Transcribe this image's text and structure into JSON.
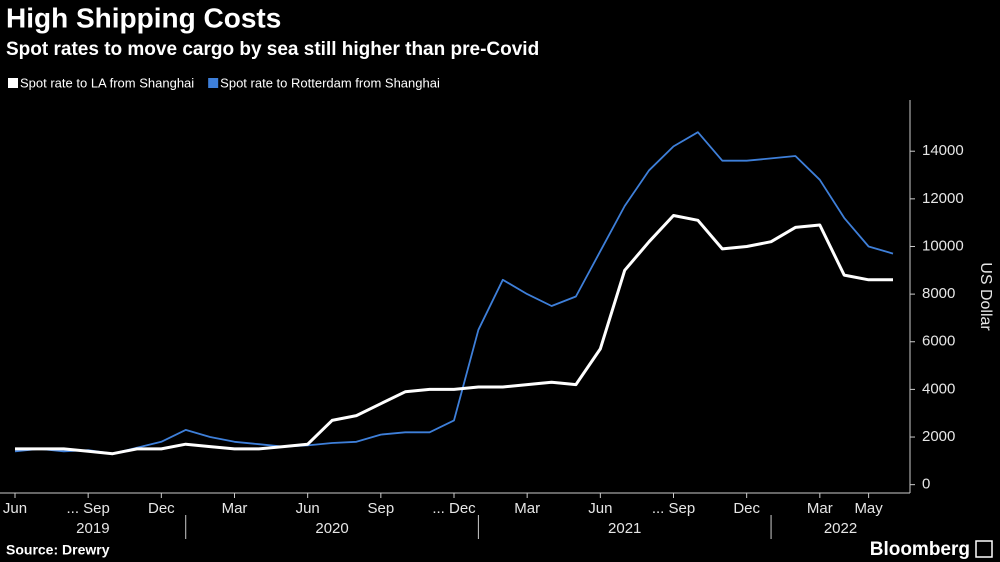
{
  "chart_data": {
    "type": "line",
    "title": "High Shipping Costs",
    "subtitle": "Spot rates to move cargo by sea still higher than pre-Covid",
    "y_axis_label": "US Dollar",
    "source": "Source: Drewry",
    "brand": "Bloomberg",
    "x": [
      "2019-06",
      "2019-07",
      "2019-08",
      "2019-09",
      "2019-10",
      "2019-11",
      "2019-12",
      "2020-01",
      "2020-02",
      "2020-03",
      "2020-04",
      "2020-05",
      "2020-06",
      "2020-07",
      "2020-08",
      "2020-09",
      "2020-10",
      "2020-11",
      "2020-12",
      "2021-01",
      "2021-02",
      "2021-03",
      "2021-04",
      "2021-05",
      "2021-06",
      "2021-07",
      "2021-08",
      "2021-09",
      "2021-10",
      "2021-11",
      "2021-12",
      "2022-01",
      "2022-02",
      "2022-03",
      "2022-04",
      "2022-05",
      "2022-06"
    ],
    "series": [
      {
        "name": "Spot rate to LA from Shanghai",
        "color": "#ffffff",
        "values": [
          1500,
          1500,
          1500,
          1400,
          1300,
          1500,
          1500,
          1700,
          1600,
          1500,
          1500,
          1600,
          1700,
          2700,
          2900,
          3400,
          3900,
          4000,
          4000,
          4100,
          4100,
          4200,
          4300,
          4200,
          5700,
          9000,
          10200,
          11300,
          11100,
          9900,
          10000,
          10200,
          10800,
          10900,
          8800,
          8600,
          8600
        ]
      },
      {
        "name": "Spot rate to Rotterdam from Shanghai",
        "color": "#3e7fd9",
        "values": [
          1400,
          1500,
          1400,
          1450,
          1300,
          1550,
          1800,
          2300,
          2000,
          1800,
          1700,
          1600,
          1650,
          1750,
          1800,
          2100,
          2200,
          2200,
          2700,
          6500,
          8600,
          8000,
          7500,
          7900,
          9800,
          11700,
          13200,
          14200,
          14800,
          13600,
          13600,
          13700,
          13800,
          12800,
          11200,
          10000,
          9700
        ]
      }
    ],
    "xlim": [
      "2019-06",
      "2022-06"
    ],
    "xticks": [
      {
        "value": "2019-06",
        "label": "Jun"
      },
      {
        "value": "2019-09",
        "label": "... Sep"
      },
      {
        "value": "2019-12",
        "label": "Dec"
      },
      {
        "value": "2020-03",
        "label": "Mar"
      },
      {
        "value": "2020-06",
        "label": "Jun"
      },
      {
        "value": "2020-09",
        "label": "Sep"
      },
      {
        "value": "2020-12",
        "label": "... Dec"
      },
      {
        "value": "2021-03",
        "label": "Mar"
      },
      {
        "value": "2021-06",
        "label": "Jun"
      },
      {
        "value": "2021-09",
        "label": "... Sep"
      },
      {
        "value": "2021-12",
        "label": "Dec"
      },
      {
        "value": "2022-03",
        "label": "Mar"
      },
      {
        "value": "2022-05",
        "label": "May"
      }
    ],
    "years": [
      "2019",
      "2020",
      "2021",
      "2022"
    ],
    "ylim": [
      -350,
      16150
    ],
    "yticks": [
      0,
      2000,
      4000,
      6000,
      8000,
      10000,
      12000,
      14000
    ]
  }
}
